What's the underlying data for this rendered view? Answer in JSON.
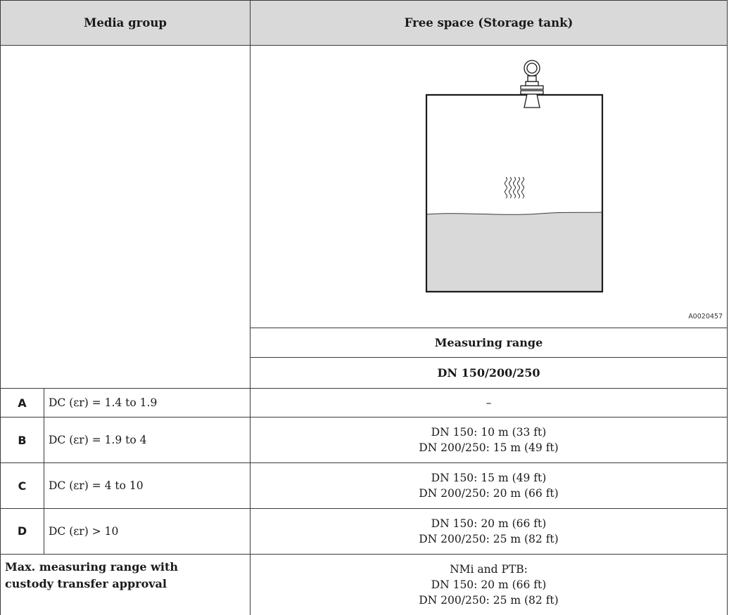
{
  "header": {
    "media_group": "Media group",
    "free_space": "Free space (Storage tank)"
  },
  "figure": {
    "code": "A0020457"
  },
  "subheaders": {
    "measuring_range": "Measuring range",
    "nominal_size": "DN 150/200/250"
  },
  "rows": [
    {
      "letter": "A",
      "dc": "DC (εr) = 1.4 to 1.9",
      "values": [
        "–"
      ]
    },
    {
      "letter": "B",
      "dc": "DC (εr) = 1.9 to 4",
      "values": [
        "DN 150: 10 m (33 ft)",
        "DN 200/250: 15 m (49 ft)"
      ]
    },
    {
      "letter": "C",
      "dc": "DC (εr) = 4 to 10",
      "values": [
        "DN 150: 15 m (49 ft)",
        "DN 200/250: 20 m (66 ft)"
      ]
    },
    {
      "letter": "D",
      "dc": "DC (εr) > 10",
      "values": [
        "DN 150: 20 m (66 ft)",
        "DN 200/250: 25 m (82 ft)"
      ]
    }
  ],
  "approval": {
    "label_line1": "Max. measuring range with",
    "label_line2": "custody transfer approval",
    "values": [
      "NMi and PTB:",
      "DN 150: 20 m (66 ft)",
      "DN 200/250: 25 m (82 ft)"
    ]
  },
  "colors": {
    "header_bg": "#d9d9d9",
    "liquid": "#d9d9d9",
    "border": "#3a3a3a"
  }
}
